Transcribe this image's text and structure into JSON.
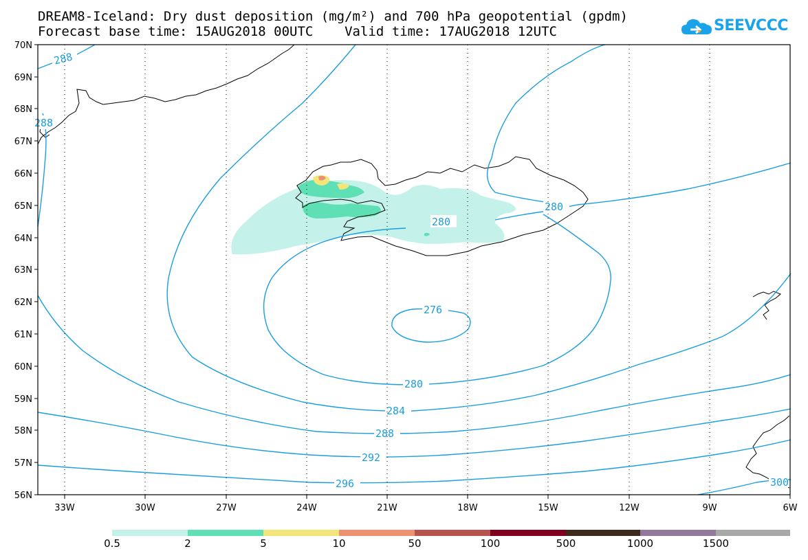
{
  "title_line1": "DREAM8-Iceland: Dry dust deposition (mg/m²) and 700 hPa geopotential (gpdm)",
  "title_line2": "Forecast base time: 15AUG2018 00UTC    Valid time: 17AUG2018 12UTC",
  "logo_text": "SEEVCCC",
  "lat_labels": [
    "70N",
    "69N",
    "68N",
    "67N",
    "66N",
    "65N",
    "64N",
    "63N",
    "62N",
    "61N",
    "60N",
    "59N",
    "58N",
    "57N",
    "56N"
  ],
  "lon_labels": [
    "33W",
    "30W",
    "27W",
    "24W",
    "21W",
    "18W",
    "15W",
    "12W",
    "9W",
    "6W"
  ],
  "contour_labels": [
    "288",
    "288",
    "280",
    "280",
    "276",
    "280",
    "284",
    "288",
    "292",
    "296",
    "300"
  ],
  "colorbar": {
    "colors": [
      "#c4f2ea",
      "#5ee0b4",
      "#f2e67a",
      "#ec9270",
      "#b5534c",
      "#800020",
      "#3d2a1c",
      "#94789c",
      "#a8a8a8"
    ],
    "labels": [
      "0.5",
      "2",
      "5",
      "10",
      "50",
      "100",
      "500",
      "1000",
      "1500"
    ]
  },
  "colors": {
    "contour": "#1a9ee0",
    "coast": "#000000",
    "dust_light": "#c4f2ea",
    "dust_mid": "#5ee0b4"
  }
}
